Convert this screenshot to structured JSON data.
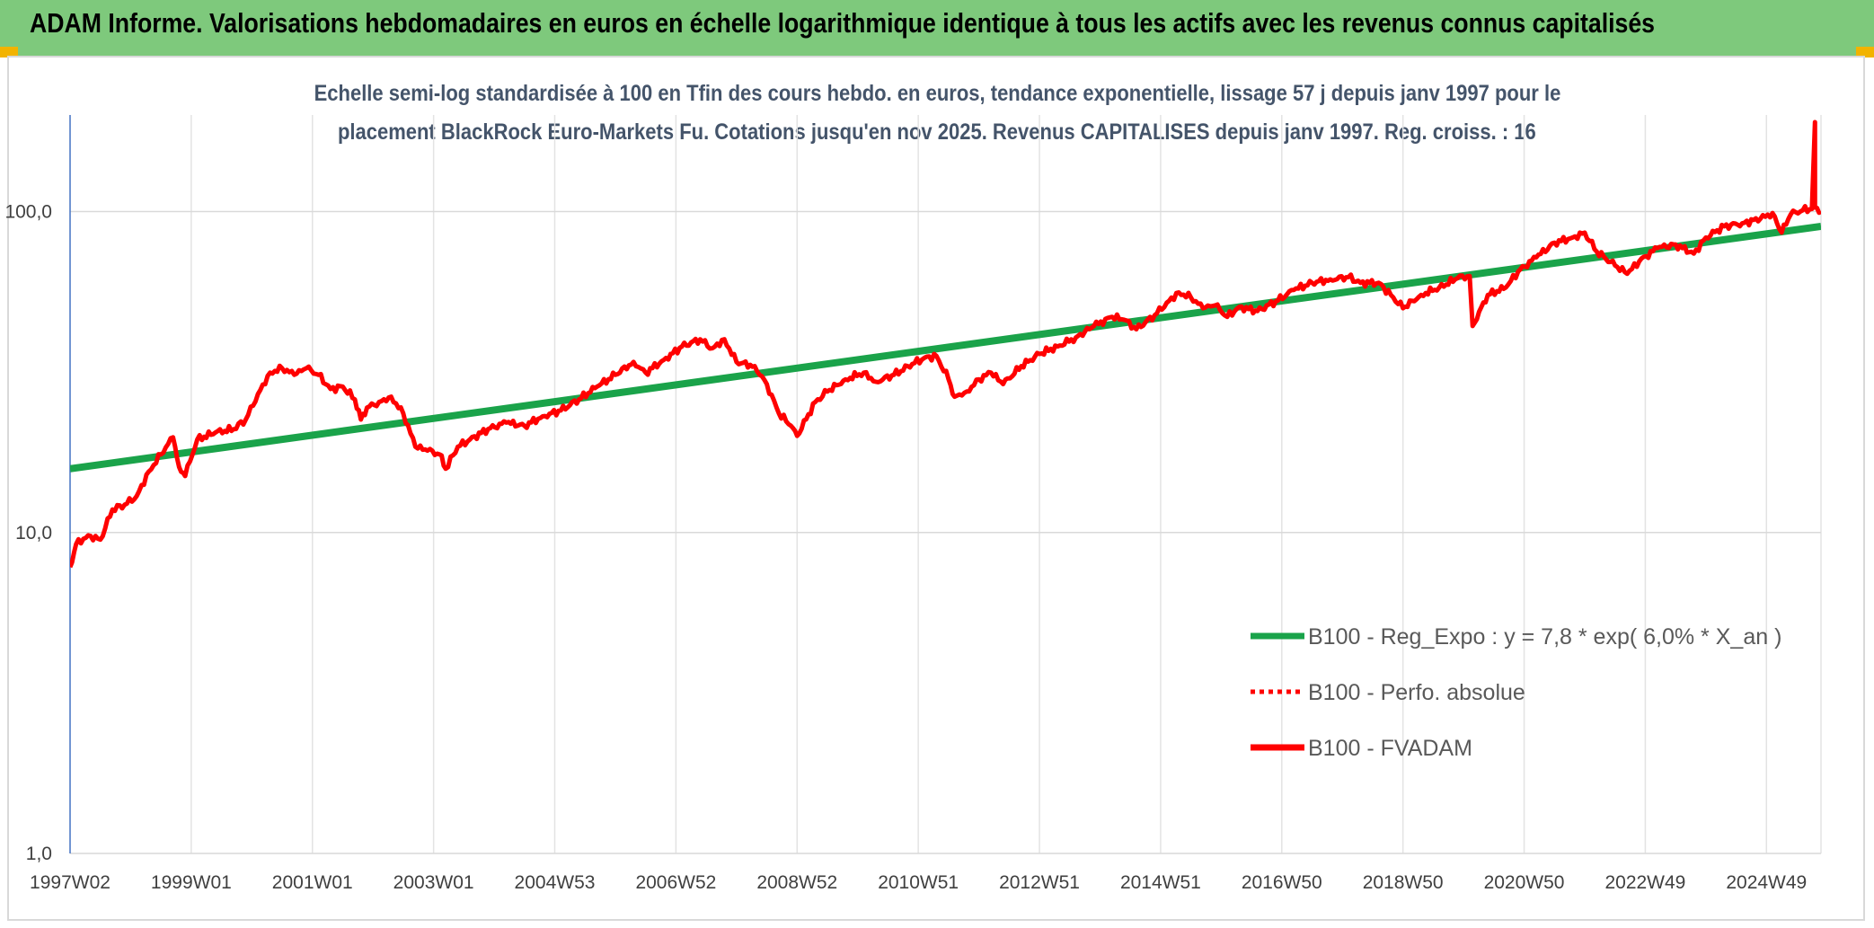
{
  "header": {
    "title": "ADAM Informe. Valorisations hebdomadaires en euros en échelle logarithmique identique à tous les actifs avec les revenus connus capitalisés"
  },
  "chart_data": {
    "type": "line",
    "title_line1": "Echelle semi-log standardisée à 100 en Tfin des cours hebdo. en euros, tendance exponentielle, lissage 57 j depuis janv 1997 pour le",
    "title_line2": "placement BlackRock Euro-Markets Fu. Cotations jusqu'en nov 2025. Revenus CAPITALISES depuis janv 1997. Reg. croiss. : 16",
    "y_scale": "log",
    "ylim": [
      1,
      200
    ],
    "y_ticks": [
      {
        "value": 1,
        "label": "1,0"
      },
      {
        "value": 10,
        "label": "10,0"
      },
      {
        "value": 100,
        "label": "100,0"
      }
    ],
    "xlim": [
      1997.0,
      2025.9
    ],
    "x_ticks": [
      {
        "value": 1997.0,
        "label": "1997W02"
      },
      {
        "value": 1999.0,
        "label": "1999W01"
      },
      {
        "value": 2001.0,
        "label": "2001W01"
      },
      {
        "value": 2003.0,
        "label": "2003W01"
      },
      {
        "value": 2005.0,
        "label": "2004W53"
      },
      {
        "value": 2007.0,
        "label": "2006W52"
      },
      {
        "value": 2009.0,
        "label": "2008W52"
      },
      {
        "value": 2011.0,
        "label": "2010W51"
      },
      {
        "value": 2013.0,
        "label": "2012W51"
      },
      {
        "value": 2015.0,
        "label": "2014W51"
      },
      {
        "value": 2017.0,
        "label": "2016W50"
      },
      {
        "value": 2019.0,
        "label": "2018W50"
      },
      {
        "value": 2021.0,
        "label": "2020W50"
      },
      {
        "value": 2023.0,
        "label": "2022W49"
      },
      {
        "value": 2025.0,
        "label": "2024W49"
      }
    ],
    "grid": true,
    "legend_position": "bottom-right",
    "series": [
      {
        "name": "B100 - Reg_Expo : y = 7,8 * exp( 6,0% *  X_an )",
        "style": "solid",
        "color": "#1aa34a",
        "points": [
          [
            1997.0,
            15.8
          ],
          [
            2025.9,
            90.0
          ]
        ]
      },
      {
        "name": "B100 - Perfo. absolue",
        "style": "dotted",
        "color": "#ff0000",
        "points": []
      },
      {
        "name": "B100 - FVADAM",
        "style": "solid",
        "color": "#ff0000",
        "points": [
          [
            1997.0,
            7.8
          ],
          [
            1997.1,
            9.2
          ],
          [
            1997.3,
            9.8
          ],
          [
            1997.5,
            9.5
          ],
          [
            1997.7,
            11.8
          ],
          [
            1997.9,
            12.2
          ],
          [
            1998.1,
            13.0
          ],
          [
            1998.3,
            15.5
          ],
          [
            1998.5,
            17.5
          ],
          [
            1998.7,
            19.8
          ],
          [
            1998.8,
            16.0
          ],
          [
            1998.9,
            15.0
          ],
          [
            1999.1,
            19.5
          ],
          [
            1999.4,
            20.5
          ],
          [
            1999.7,
            21.0
          ],
          [
            1999.9,
            22.5
          ],
          [
            2000.1,
            27.0
          ],
          [
            2000.3,
            31.5
          ],
          [
            2000.5,
            32.5
          ],
          [
            2000.7,
            31.0
          ],
          [
            2000.9,
            32.5
          ],
          [
            2001.1,
            31.0
          ],
          [
            2001.3,
            28.0
          ],
          [
            2001.5,
            28.5
          ],
          [
            2001.7,
            26.0
          ],
          [
            2001.8,
            22.5
          ],
          [
            2001.9,
            24.5
          ],
          [
            2002.1,
            25.5
          ],
          [
            2002.3,
            26.5
          ],
          [
            2002.5,
            23.5
          ],
          [
            2002.7,
            18.5
          ],
          [
            2002.9,
            18.0
          ],
          [
            2003.1,
            17.5
          ],
          [
            2003.2,
            15.8
          ],
          [
            2003.4,
            18.5
          ],
          [
            2003.6,
            19.5
          ],
          [
            2003.9,
            21.0
          ],
          [
            2004.2,
            22.0
          ],
          [
            2004.5,
            21.5
          ],
          [
            2004.8,
            23.0
          ],
          [
            2005.1,
            24.0
          ],
          [
            2005.4,
            26.0
          ],
          [
            2005.7,
            28.5
          ],
          [
            2006.0,
            31.0
          ],
          [
            2006.3,
            34.0
          ],
          [
            2006.5,
            31.5
          ],
          [
            2006.8,
            34.5
          ],
          [
            2007.1,
            38.0
          ],
          [
            2007.4,
            40.0
          ],
          [
            2007.6,
            37.5
          ],
          [
            2007.8,
            40.0
          ],
          [
            2008.0,
            34.0
          ],
          [
            2008.3,
            33.0
          ],
          [
            2008.5,
            29.0
          ],
          [
            2008.7,
            23.5
          ],
          [
            2008.9,
            21.5
          ],
          [
            2009.0,
            20.0
          ],
          [
            2009.3,
            25.5
          ],
          [
            2009.5,
            27.5
          ],
          [
            2009.8,
            30.0
          ],
          [
            2010.1,
            31.5
          ],
          [
            2010.3,
            29.5
          ],
          [
            2010.6,
            31.0
          ],
          [
            2010.9,
            33.5
          ],
          [
            2011.1,
            35.0
          ],
          [
            2011.3,
            35.5
          ],
          [
            2011.5,
            30.0
          ],
          [
            2011.6,
            26.5
          ],
          [
            2011.8,
            27.5
          ],
          [
            2012.0,
            30.0
          ],
          [
            2012.2,
            31.5
          ],
          [
            2012.4,
            29.0
          ],
          [
            2012.7,
            33.0
          ],
          [
            2013.0,
            36.0
          ],
          [
            2013.3,
            38.0
          ],
          [
            2013.6,
            40.5
          ],
          [
            2013.9,
            44.0
          ],
          [
            2014.2,
            47.0
          ],
          [
            2014.4,
            46.0
          ],
          [
            2014.6,
            43.0
          ],
          [
            2014.9,
            47.5
          ],
          [
            2015.1,
            52.0
          ],
          [
            2015.3,
            56.0
          ],
          [
            2015.5,
            54.0
          ],
          [
            2015.7,
            50.0
          ],
          [
            2015.9,
            51.0
          ],
          [
            2016.1,
            47.0
          ],
          [
            2016.3,
            50.5
          ],
          [
            2016.6,
            49.0
          ],
          [
            2016.9,
            52.5
          ],
          [
            2017.2,
            57.0
          ],
          [
            2017.5,
            60.0
          ],
          [
            2017.8,
            61.5
          ],
          [
            2018.1,
            62.5
          ],
          [
            2018.3,
            60.0
          ],
          [
            2018.6,
            60.0
          ],
          [
            2018.8,
            55.0
          ],
          [
            2019.0,
            50.0
          ],
          [
            2019.3,
            55.0
          ],
          [
            2019.6,
            58.0
          ],
          [
            2019.9,
            62.0
          ],
          [
            2020.1,
            63.0
          ],
          [
            2020.15,
            44.0
          ],
          [
            2020.4,
            55.0
          ],
          [
            2020.7,
            58.0
          ],
          [
            2020.9,
            65.0
          ],
          [
            2021.2,
            72.0
          ],
          [
            2021.5,
            80.0
          ],
          [
            2021.8,
            83.0
          ],
          [
            2022.0,
            86.0
          ],
          [
            2022.2,
            75.0
          ],
          [
            2022.5,
            68.0
          ],
          [
            2022.7,
            64.0
          ],
          [
            2022.9,
            70.0
          ],
          [
            2023.2,
            77.0
          ],
          [
            2023.5,
            79.0
          ],
          [
            2023.8,
            74.0
          ],
          [
            2024.0,
            83.0
          ],
          [
            2024.3,
            90.0
          ],
          [
            2024.6,
            92.0
          ],
          [
            2024.9,
            95.0
          ],
          [
            2025.1,
            99.0
          ],
          [
            2025.25,
            86.0
          ],
          [
            2025.4,
            98.0
          ],
          [
            2025.6,
            101.0
          ],
          [
            2025.75,
            102.0
          ],
          [
            2025.8,
            190.0
          ],
          [
            2025.8,
            103.0
          ],
          [
            2025.9,
            100.0
          ]
        ]
      }
    ]
  }
}
